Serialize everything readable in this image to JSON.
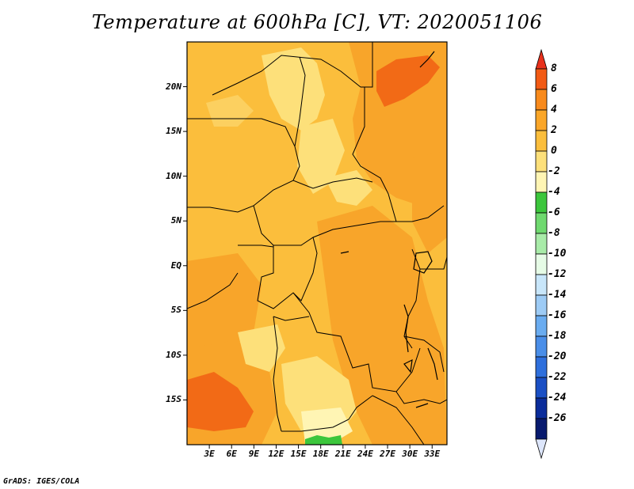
{
  "title": "Temperature at 600hPa [C], VT: 2020051106",
  "credit": "GrADS: IGES/COLA",
  "map": {
    "lon_range": [
      0,
      35
    ],
    "lat_range": [
      -20,
      25
    ],
    "y_ticks": [
      {
        "label": "20N",
        "lat": 20
      },
      {
        "label": "15N",
        "lat": 15
      },
      {
        "label": "10N",
        "lat": 10
      },
      {
        "label": "5N",
        "lat": 5
      },
      {
        "label": "EQ",
        "lat": 0
      },
      {
        "label": "5S",
        "lat": -5
      },
      {
        "label": "10S",
        "lat": -10
      },
      {
        "label": "15S",
        "lat": -15
      }
    ],
    "x_ticks": [
      {
        "label": "3E",
        "lon": 3
      },
      {
        "label": "6E",
        "lon": 6
      },
      {
        "label": "9E",
        "lon": 9
      },
      {
        "label": "12E",
        "lon": 12
      },
      {
        "label": "15E",
        "lon": 15
      },
      {
        "label": "18E",
        "lon": 18
      },
      {
        "label": "21E",
        "lon": 21
      },
      {
        "label": "24E",
        "lon": 24
      },
      {
        "label": "27E",
        "lon": 27
      },
      {
        "label": "30E",
        "lon": 30
      },
      {
        "label": "33E",
        "lon": 33
      }
    ]
  },
  "colorbar": {
    "labels": [
      "8",
      "6",
      "4",
      "2",
      "0",
      "-2",
      "-4",
      "-6",
      "-8",
      "-10",
      "-12",
      "-14",
      "-16",
      "-18",
      "-20",
      "-22",
      "-24",
      "-26"
    ],
    "colors": [
      "#e8311c",
      "#f25a14",
      "#f88a1c",
      "#faa628",
      "#fbbe3c",
      "#fde07a",
      "#fff5b4",
      "#3cc63c",
      "#6fd96f",
      "#a8eba8",
      "#e6fbe6",
      "#c8e6fa",
      "#9dcbf5",
      "#6aacf0",
      "#4a8ee8",
      "#2e6fdc",
      "#1a4fc4",
      "#0a2c9a",
      "#081a6e",
      "#dde6fb"
    ]
  }
}
